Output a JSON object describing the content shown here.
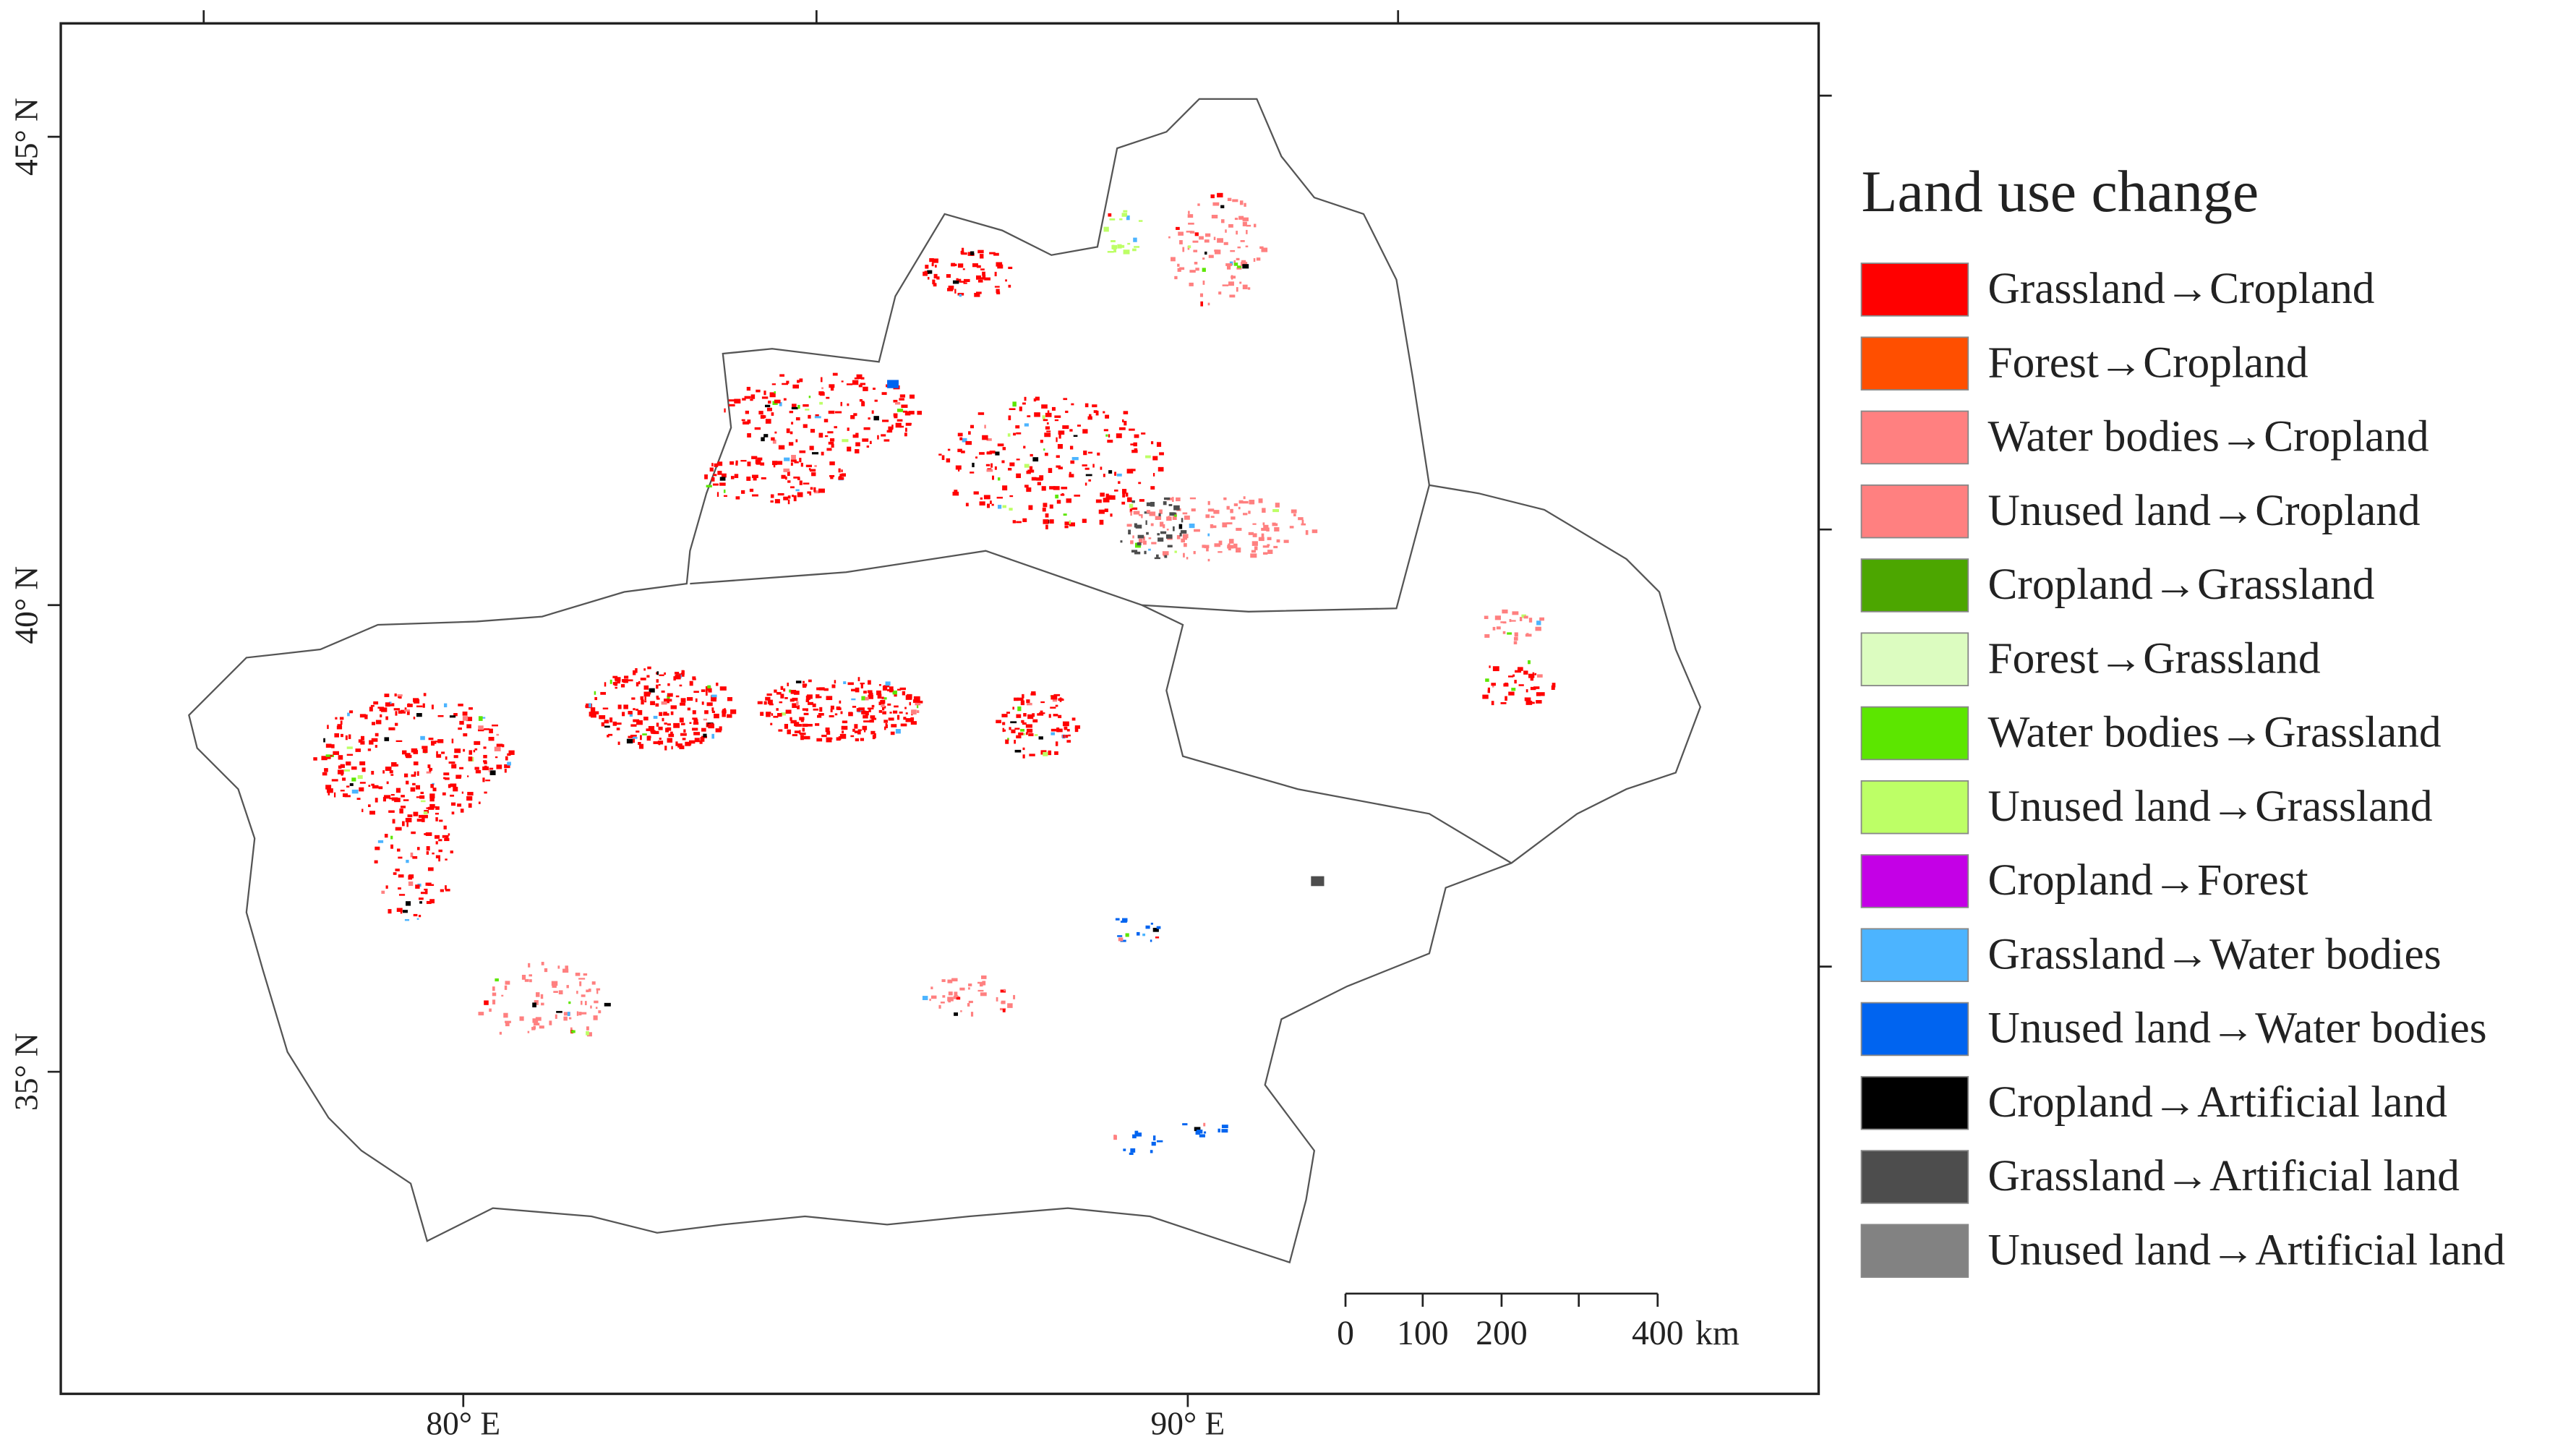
{
  "map": {
    "lat_labels": [
      "45° N",
      "40° N",
      "35° N"
    ],
    "lon_labels": [
      "80° E",
      "90° E"
    ],
    "scale_bar": {
      "labels": [
        "0",
        "100",
        "200",
        "400"
      ],
      "unit": "km"
    },
    "legend": {
      "title": "Land use change",
      "items": [
        {
          "name": "Grassland→Cropland",
          "color": "#ff0000"
        },
        {
          "name": "Forest→Cropland",
          "color": "#ff4f00"
        },
        {
          "name": "Water bodies→Cropland",
          "color": "#ff8080"
        },
        {
          "name": "Unused land→Cropland",
          "color": "#ff8080"
        },
        {
          "name": "Cropland→Grassland",
          "color": "#4ca600"
        },
        {
          "name": "Forest→Grassland",
          "color": "#dcfcc0"
        },
        {
          "name": "Water bodies→Grassland",
          "color": "#5ce600"
        },
        {
          "name": "Unused land→Grassland",
          "color": "#bdff66"
        },
        {
          "name": "Cropland→Forest",
          "color": "#c400e6"
        },
        {
          "name": "Grassland→Water bodies",
          "color": "#4cb4ff"
        },
        {
          "name": "Unused land→Water bodies",
          "color": "#0064f0"
        },
        {
          "name": "Cropland→Artificial land",
          "color": "#000000"
        },
        {
          "name": "Grassland→Artificial land",
          "color": "#4d4d4d"
        },
        {
          "name": "Unused land→Artificial land",
          "color": "#828282"
        }
      ]
    }
  }
}
